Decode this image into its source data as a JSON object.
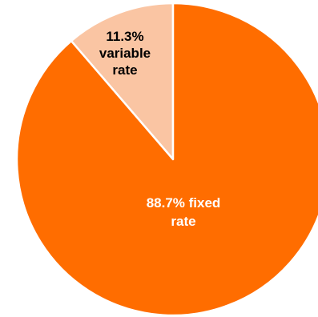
{
  "chart_data": {
    "type": "pie",
    "slices": [
      {
        "label_lines": [
          "11.3%",
          "variable",
          "rate"
        ],
        "category": "variable rate",
        "percent": 11.3,
        "color": "#fac5a3",
        "label_color": "#000000"
      },
      {
        "label_lines": [
          "88.7% fixed",
          "rate"
        ],
        "category": "fixed rate",
        "percent": 88.7,
        "color": "#ff6d00",
        "label_color": "#ffffff"
      }
    ],
    "start": "12 o'clock",
    "direction": "counterclockwise",
    "slice_border_color": "#ffffff"
  }
}
